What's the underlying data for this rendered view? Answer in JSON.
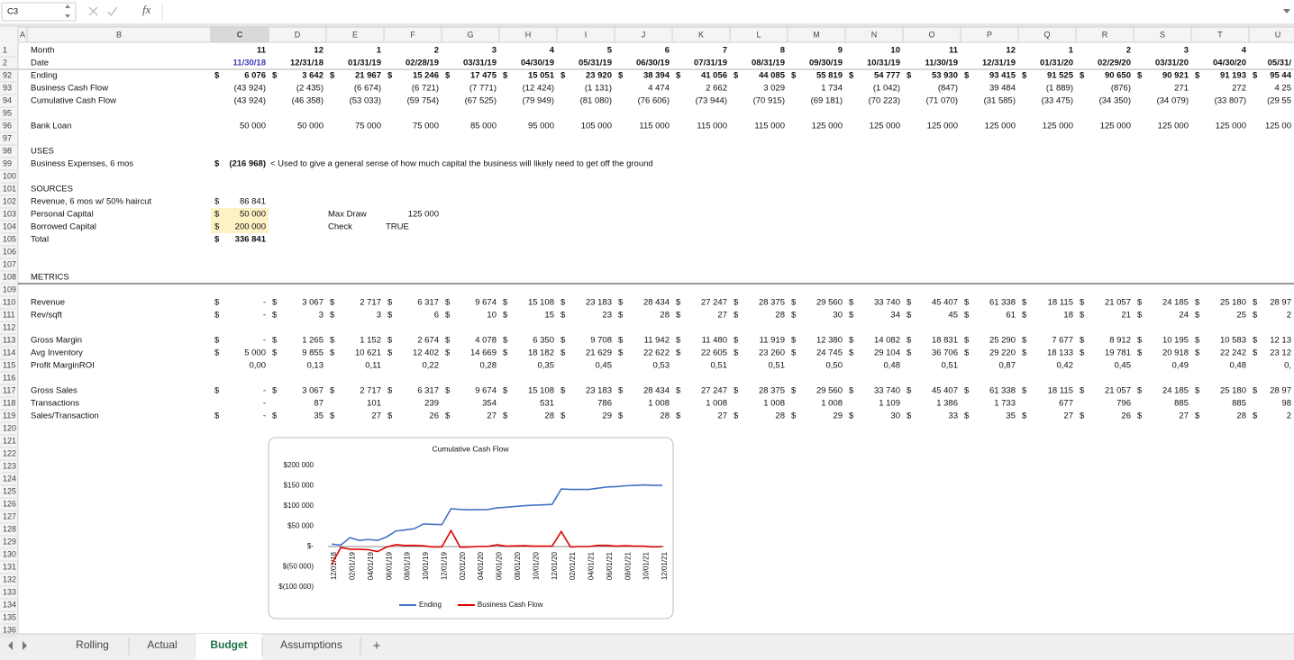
{
  "formula_bar": {
    "name_box": "C3",
    "fx": "fx"
  },
  "sheet": {
    "columns": [
      "A",
      "B",
      "C",
      "D",
      "E",
      "F",
      "G",
      "H",
      "I",
      "J",
      "K",
      "L",
      "M",
      "N",
      "O",
      "P",
      "Q",
      "R",
      "S",
      "T",
      "U"
    ],
    "active_column": "C",
    "row_numbers": [
      1,
      2,
      92,
      93,
      94,
      95,
      96,
      97,
      98,
      99,
      100,
      101,
      102,
      103,
      104,
      105,
      106,
      107,
      108,
      109,
      110,
      111,
      112,
      113,
      114,
      115,
      116,
      117,
      118,
      119,
      120,
      121,
      122,
      123,
      124,
      125,
      126,
      127,
      128,
      129,
      130,
      131,
      132,
      133,
      134,
      135,
      136
    ],
    "currency": "$",
    "rows": {
      "1": {
        "label": "Month",
        "bold": true,
        "cells": [
          "11",
          "12",
          "1",
          "2",
          "3",
          "4",
          "5",
          "6",
          "7",
          "8",
          "9",
          "10",
          "11",
          "12",
          "1",
          "2",
          "3",
          "4",
          null
        ]
      },
      "2": {
        "label": "Date",
        "bold": true,
        "cell_colors": {
          "C": "#3a3ab4"
        },
        "cells": [
          "11/30/18",
          "12/31/18",
          "01/31/19",
          "02/28/19",
          "03/31/19",
          "04/30/19",
          "05/31/19",
          "06/30/19",
          "07/31/19",
          "08/31/19",
          "09/30/19",
          "10/31/19",
          "11/30/19",
          "12/31/19",
          "01/31/20",
          "02/29/20",
          "03/31/20",
          "04/30/20",
          "05/31/"
        ]
      },
      "92": {
        "label": "Ending",
        "bold": true,
        "dollar": true,
        "cells": [
          "6 076",
          "3 642",
          "21 967",
          "15 246",
          "17 475",
          "15 051",
          "23 920",
          "38 394",
          "41 056",
          "44 085",
          "55 819",
          "54 777",
          "53 930",
          "93 415",
          "91 525",
          "90 650",
          "90 921",
          "91 193",
          "95 44"
        ]
      },
      "93": {
        "label": "Business Cash Flow",
        "cells": [
          "(43 924)",
          "(2 435)",
          "(6 674)",
          "(6 721)",
          "(7 771)",
          "(12 424)",
          "(1 131)",
          "4 474",
          "2 662",
          "3 029",
          "1 734",
          "(1 042)",
          "(847)",
          "39 484",
          "(1 889)",
          "(876)",
          "271",
          "272",
          "4 25"
        ]
      },
      "94": {
        "label": "Cumulative Cash Flow",
        "cells": [
          "(43 924)",
          "(46 358)",
          "(53 033)",
          "(59 754)",
          "(67 525)",
          "(79 949)",
          "(81 080)",
          "(76 606)",
          "(73 944)",
          "(70 915)",
          "(69 181)",
          "(70 223)",
          "(71 070)",
          "(31 585)",
          "(33 475)",
          "(34 350)",
          "(34 079)",
          "(33 807)",
          "(29 55"
        ]
      },
      "96": {
        "label": "Bank Loan",
        "cells": [
          "50 000",
          "50 000",
          "75 000",
          "75 000",
          "85 000",
          "95 000",
          "105 000",
          "115 000",
          "115 000",
          "115 000",
          "125 000",
          "125 000",
          "125 000",
          "125 000",
          "125 000",
          "125 000",
          "125 000",
          "125 000",
          "125 00"
        ]
      },
      "98": {
        "label": "USES"
      },
      "99": {
        "label": "Business Expenses, 6 mos",
        "dollar_cells": [
          "C"
        ],
        "bold_cells": [
          "C"
        ],
        "align_left": [
          "D"
        ],
        "cells": [
          "(216 968)",
          "< Used to give a general sense of how much capital the business will likely need to get off the ground"
        ]
      },
      "101": {
        "label": "SOURCES"
      },
      "102": {
        "label": "Revenue, 6 mos w/ 50% haircut",
        "dollar_cells": [
          "C"
        ],
        "cells": [
          "86 841"
        ]
      },
      "103": {
        "label": "Personal Capital",
        "dollar_cells": [
          "C"
        ],
        "highlight": [
          "C"
        ],
        "align_left": [
          "E"
        ],
        "cells": [
          "50 000",
          null,
          "Max Draw",
          "125 000"
        ]
      },
      "104": {
        "label": "Borrowed Capital",
        "dollar_cells": [
          "C"
        ],
        "highlight": [
          "C"
        ],
        "align_left": [
          "E",
          "F"
        ],
        "cells": [
          "200 000",
          null,
          "Check",
          "TRUE"
        ]
      },
      "105": {
        "label": "Total",
        "bold": true,
        "dollar_cells": [
          "C"
        ],
        "cells": [
          "336 841"
        ]
      },
      "108": {
        "label": "METRICS",
        "border_bottom": true
      },
      "110": {
        "label": "Revenue",
        "dollar": true,
        "cells": [
          "-",
          "3 067",
          "2 717",
          "6 317",
          "9 674",
          "15 108",
          "23 183",
          "28 434",
          "27 247",
          "28 375",
          "29 560",
          "33 740",
          "45 407",
          "61 338",
          "18 115",
          "21 057",
          "24 185",
          "25 180",
          "28 97"
        ]
      },
      "111": {
        "label": "Rev/sqft",
        "dollar": true,
        "cells": [
          "-",
          "3",
          "3",
          "6",
          "10",
          "15",
          "23",
          "28",
          "27",
          "28",
          "30",
          "34",
          "45",
          "61",
          "18",
          "21",
          "24",
          "25",
          "2"
        ]
      },
      "113": {
        "label": "Gross Margin",
        "dollar": true,
        "cells": [
          "-",
          "1 265",
          "1 152",
          "2 674",
          "4 078",
          "6 350",
          "9 708",
          "11 942",
          "11 480",
          "11 919",
          "12 380",
          "14 082",
          "18 831",
          "25 290",
          "7 677",
          "8 912",
          "10 195",
          "10 583",
          "12 13"
        ]
      },
      "114": {
        "label": "Avg Inventory",
        "dollar": true,
        "cells": [
          "5 000",
          "9 855",
          "10 621",
          "12 402",
          "14 669",
          "18 182",
          "21 629",
          "22 622",
          "22 605",
          "23 260",
          "24 745",
          "29 104",
          "36 706",
          "29 220",
          "18 133",
          "19 781",
          "20 918",
          "22 242",
          "23 12"
        ]
      },
      "115": {
        "label": "Profit MarginROI",
        "cells": [
          "0,00",
          "0,13",
          "0,11",
          "0,22",
          "0,28",
          "0,35",
          "0,45",
          "0,53",
          "0,51",
          "0,51",
          "0,50",
          "0,48",
          "0,51",
          "0,87",
          "0,42",
          "0,45",
          "0,49",
          "0,48",
          "0,"
        ]
      },
      "117": {
        "label": "Gross Sales",
        "dollar": true,
        "cells": [
          "-",
          "3 067",
          "2 717",
          "6 317",
          "9 674",
          "15 108",
          "23 183",
          "28 434",
          "27 247",
          "28 375",
          "29 560",
          "33 740",
          "45 407",
          "61 338",
          "18 115",
          "21 057",
          "24 185",
          "25 180",
          "28 97"
        ]
      },
      "118": {
        "label": "Transactions",
        "cells": [
          "-",
          "87",
          "101",
          "239",
          "354",
          "531",
          "786",
          "1 008",
          "1 008",
          "1 008",
          "1 008",
          "1 109",
          "1 386",
          "1 733",
          "677",
          "796",
          "885",
          "885",
          "98"
        ]
      },
      "119": {
        "label": "Sales/Transaction",
        "dollar": true,
        "cells": [
          "-",
          "35",
          "27",
          "26",
          "27",
          "28",
          "29",
          "28",
          "27",
          "28",
          "29",
          "30",
          "33",
          "35",
          "27",
          "26",
          "27",
          "28",
          "2"
        ]
      }
    }
  },
  "chart_data": {
    "type": "line",
    "title": "Cumulative Cash Flow",
    "categories": [
      "12/01/18",
      null,
      "02/01/19",
      null,
      "04/01/19",
      null,
      "06/01/19",
      null,
      "08/01/19",
      null,
      "10/01/19",
      null,
      "12/01/19",
      null,
      "02/01/20",
      null,
      "04/01/20",
      null,
      "06/01/20",
      null,
      "08/01/20",
      null,
      "10/01/20",
      null,
      "12/01/20",
      null,
      "02/01/21",
      null,
      "04/01/21",
      null,
      "06/01/21",
      null,
      "08/01/21",
      null,
      "10/01/21",
      null,
      "12/01/21"
    ],
    "series": [
      {
        "name": "Ending",
        "color": "#4472c4",
        "values": [
          6076,
          3642,
          21967,
          15246,
          17475,
          15051,
          23920,
          38394,
          41056,
          44085,
          55819,
          54777,
          53930,
          93415,
          91525,
          90650,
          90921,
          91193,
          95440,
          97000,
          99000,
          101000,
          102000,
          103000,
          104000,
          142000,
          141000,
          141000,
          141000,
          144000,
          147000,
          148000,
          150000,
          151000,
          152000,
          151000,
          151000
        ]
      },
      {
        "name": "Business Cash Flow",
        "color": "#e00000",
        "values": [
          -43924,
          -2435,
          -6674,
          -6721,
          -7771,
          -12424,
          -1131,
          4474,
          2662,
          3029,
          1734,
          -1042,
          -847,
          39484,
          -1889,
          -876,
          271,
          272,
          4250,
          1000,
          1500,
          2000,
          1000,
          1000,
          1000,
          37000,
          -1000,
          0,
          0,
          3000,
          3000,
          1000,
          2000,
          1000,
          1000,
          -1000,
          0
        ]
      }
    ],
    "ylim": [
      -100000,
      200000
    ],
    "yticks": [
      {
        "value": 200000,
        "label": "$200 000"
      },
      {
        "value": 150000,
        "label": "$150 000"
      },
      {
        "value": 100000,
        "label": "$100 000"
      },
      {
        "value": 50000,
        "label": "$50 000"
      },
      {
        "value": 0,
        "label": "$-"
      },
      {
        "value": -50000,
        "label": "$(50 000)"
      },
      {
        "value": -100000,
        "label": "$(100 000)"
      }
    ],
    "legend": "bottom"
  },
  "tabs": [
    "Rolling",
    "Actual",
    "Budget",
    "Assumptions"
  ],
  "active_tab": "Budget",
  "add_tab": "+"
}
